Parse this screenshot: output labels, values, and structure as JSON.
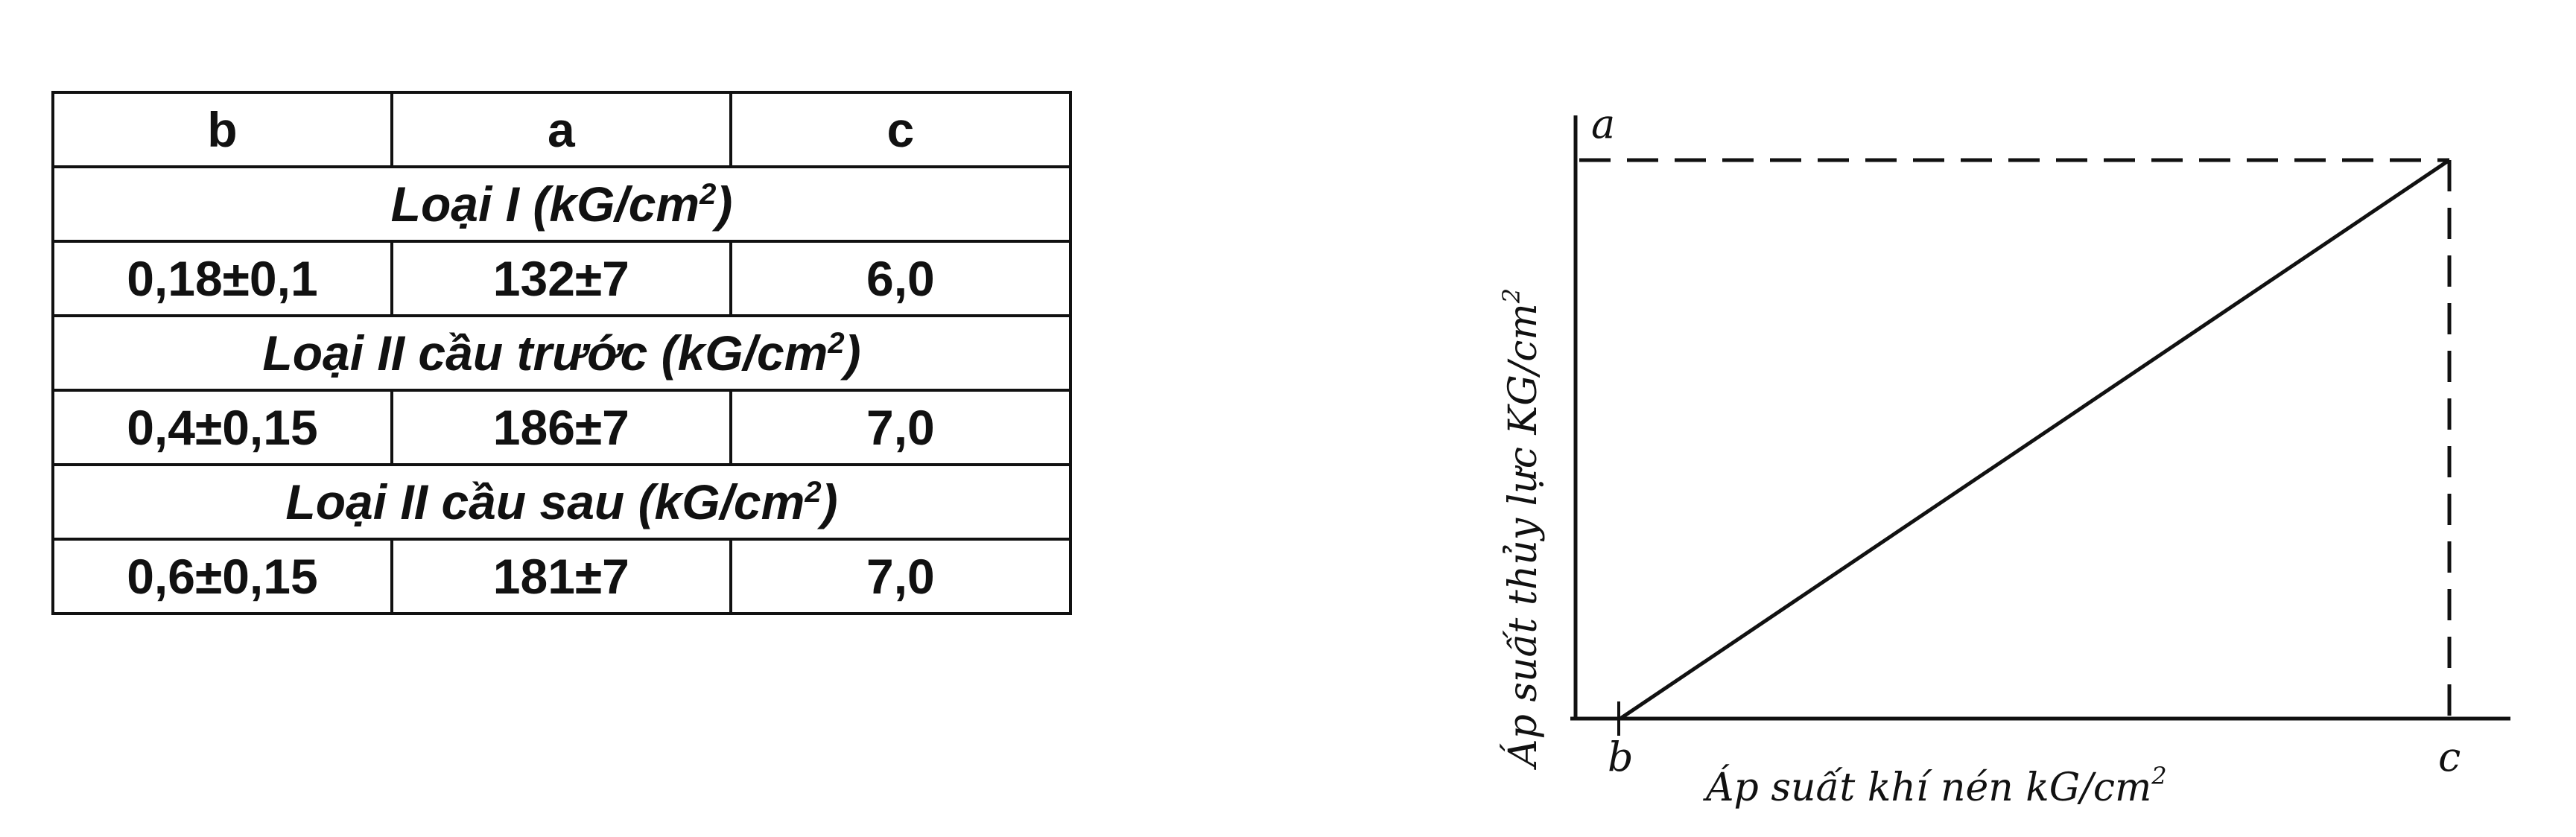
{
  "table": {
    "headers": [
      "b",
      "a",
      "c"
    ],
    "groups": [
      {
        "title": "Loại I (kG/cm",
        "sup": "2",
        "close": ")",
        "row": [
          "0,18±0,1",
          "132±7",
          "6,0"
        ]
      },
      {
        "title": "Loại II  cầu trước (kG/cm",
        "sup": "2",
        "close": ")",
        "row": [
          "0,4±0,15",
          "186±7",
          "7,0"
        ]
      },
      {
        "title": "Loại II  cầu sau (kG/cm",
        "sup": "2",
        "close": ")",
        "row": [
          "0,6±0,15",
          "181±7",
          "7,0"
        ]
      }
    ]
  },
  "diagram": {
    "point_labels": {
      "a": "a",
      "b": "b",
      "c": "c"
    },
    "y_axis_label": "Áp suất thủy lực KG/cm",
    "y_axis_sup": "2",
    "x_axis_label": "Áp suất khí nén kG/cm",
    "x_axis_sup": "2"
  }
}
